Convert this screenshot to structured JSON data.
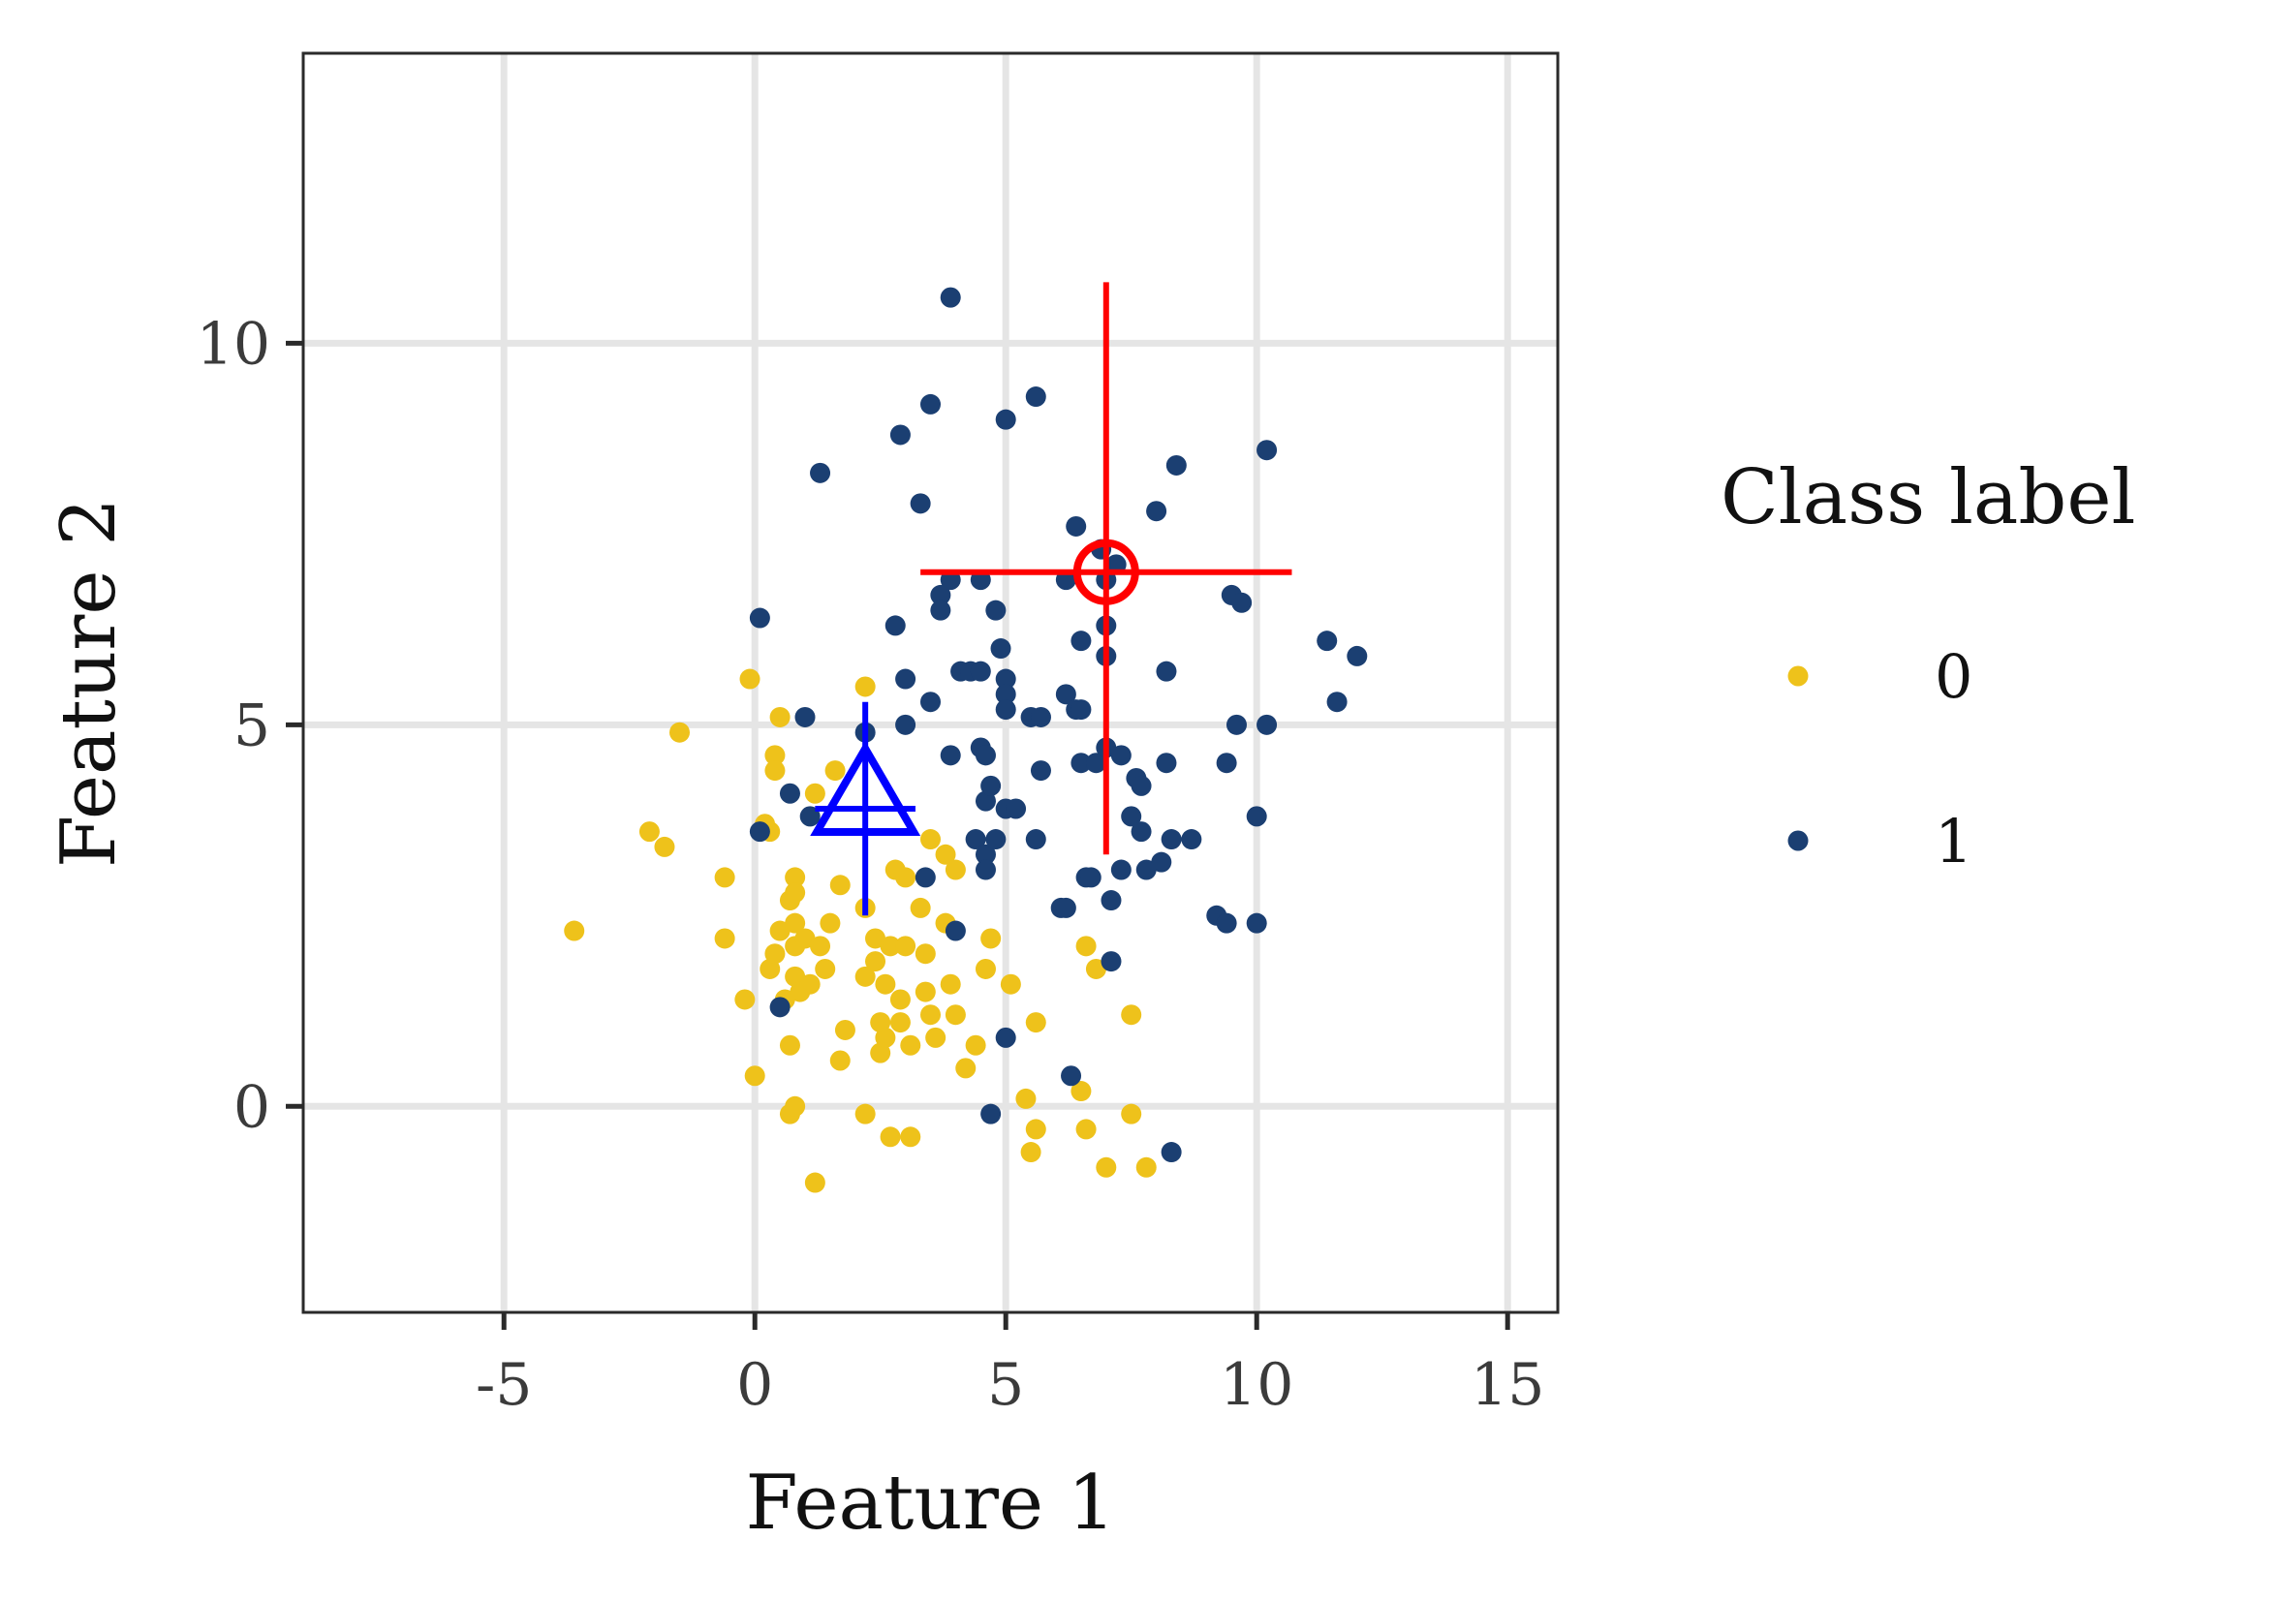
{
  "chart_data": {
    "type": "scatter",
    "xlabel": "Feature 1",
    "ylabel": "Feature 2",
    "xlim": [
      -9,
      16
    ],
    "ylim": [
      -2.7,
      13.8
    ],
    "xticks": [
      -5,
      0,
      5,
      10,
      15
    ],
    "yticks": [
      0,
      5,
      10
    ],
    "xtick_labels": [
      "-5",
      "0",
      "5",
      "10",
      "15"
    ],
    "ytick_labels": [
      "0",
      "5",
      "10"
    ],
    "grid": true,
    "legend": {
      "title": "Class label",
      "position": "right",
      "entries": [
        "0",
        "1"
      ]
    },
    "series": [
      {
        "name": "0",
        "color": "#eec21b",
        "points": [
          [
            -3.6,
            2.3
          ],
          [
            -2.1,
            3.6
          ],
          [
            -1.8,
            3.4
          ],
          [
            -1.5,
            4.9
          ],
          [
            -0.6,
            3.0
          ],
          [
            -0.6,
            2.2
          ],
          [
            -0.2,
            1.4
          ],
          [
            -0.1,
            5.6
          ],
          [
            0.0,
            0.4
          ],
          [
            0.2,
            3.7
          ],
          [
            0.3,
            3.6
          ],
          [
            0.3,
            1.8
          ],
          [
            0.4,
            4.6
          ],
          [
            0.4,
            4.4
          ],
          [
            0.4,
            2.0
          ],
          [
            0.5,
            5.1
          ],
          [
            0.5,
            2.3
          ],
          [
            0.6,
            1.4
          ],
          [
            0.7,
            2.7
          ],
          [
            0.7,
            0.8
          ],
          [
            0.7,
            -0.1
          ],
          [
            0.8,
            3.0
          ],
          [
            0.8,
            2.8
          ],
          [
            0.8,
            2.4
          ],
          [
            0.8,
            2.1
          ],
          [
            0.8,
            1.7
          ],
          [
            0.8,
            0.0
          ],
          [
            0.9,
            1.5
          ],
          [
            1.0,
            2.2
          ],
          [
            1.1,
            1.6
          ],
          [
            1.2,
            4.1
          ],
          [
            1.2,
            -1.0
          ],
          [
            1.3,
            2.1
          ],
          [
            1.4,
            1.8
          ],
          [
            1.5,
            2.4
          ],
          [
            1.6,
            4.4
          ],
          [
            1.7,
            2.9
          ],
          [
            1.7,
            0.6
          ],
          [
            1.8,
            1.0
          ],
          [
            2.2,
            5.5
          ],
          [
            2.2,
            2.6
          ],
          [
            2.2,
            1.7
          ],
          [
            2.2,
            -0.1
          ],
          [
            2.4,
            2.2
          ],
          [
            2.4,
            1.9
          ],
          [
            2.5,
            1.1
          ],
          [
            2.5,
            0.7
          ],
          [
            2.6,
            0.9
          ],
          [
            2.6,
            1.6
          ],
          [
            2.7,
            2.1
          ],
          [
            2.7,
            -0.4
          ],
          [
            2.8,
            3.1
          ],
          [
            2.9,
            1.4
          ],
          [
            2.9,
            1.1
          ],
          [
            3.0,
            2.1
          ],
          [
            3.0,
            3.0
          ],
          [
            3.1,
            0.8
          ],
          [
            3.1,
            -0.4
          ],
          [
            3.3,
            2.6
          ],
          [
            3.4,
            1.5
          ],
          [
            3.4,
            2.0
          ],
          [
            3.5,
            3.5
          ],
          [
            3.5,
            1.2
          ],
          [
            3.6,
            0.9
          ],
          [
            3.8,
            3.3
          ],
          [
            3.8,
            2.4
          ],
          [
            3.9,
            1.6
          ],
          [
            4.0,
            3.1
          ],
          [
            4.0,
            1.2
          ],
          [
            4.2,
            0.5
          ],
          [
            4.4,
            0.8
          ],
          [
            4.6,
            1.8
          ],
          [
            4.7,
            2.2
          ],
          [
            5.1,
            1.6
          ],
          [
            5.4,
            0.1
          ],
          [
            5.5,
            -0.6
          ],
          [
            5.6,
            1.1
          ],
          [
            5.6,
            -0.3
          ],
          [
            6.5,
            0.2
          ],
          [
            6.6,
            2.1
          ],
          [
            6.6,
            -0.3
          ],
          [
            6.8,
            1.8
          ],
          [
            7.0,
            -0.8
          ],
          [
            7.5,
            1.2
          ],
          [
            7.5,
            -0.1
          ],
          [
            7.8,
            -0.8
          ]
        ]
      },
      {
        "name": "1",
        "color": "#1b3f72",
        "points": [
          [
            0.1,
            6.4
          ],
          [
            0.1,
            3.6
          ],
          [
            0.5,
            1.3
          ],
          [
            0.7,
            4.1
          ],
          [
            1.0,
            5.1
          ],
          [
            1.1,
            3.8
          ],
          [
            1.3,
            8.3
          ],
          [
            2.2,
            4.9
          ],
          [
            2.8,
            6.3
          ],
          [
            2.9,
            8.8
          ],
          [
            3.0,
            5.6
          ],
          [
            3.0,
            5.0
          ],
          [
            3.3,
            7.9
          ],
          [
            3.4,
            3.0
          ],
          [
            3.5,
            9.2
          ],
          [
            3.5,
            5.3
          ],
          [
            3.7,
            6.7
          ],
          [
            3.7,
            6.5
          ],
          [
            3.9,
            10.6
          ],
          [
            3.9,
            6.9
          ],
          [
            3.9,
            4.6
          ],
          [
            4.0,
            2.3
          ],
          [
            4.1,
            5.7
          ],
          [
            4.3,
            5.7
          ],
          [
            4.4,
            3.5
          ],
          [
            4.5,
            6.9
          ],
          [
            4.5,
            5.7
          ],
          [
            4.5,
            4.7
          ],
          [
            4.6,
            4.6
          ],
          [
            4.6,
            4.0
          ],
          [
            4.6,
            3.3
          ],
          [
            4.6,
            3.1
          ],
          [
            4.7,
            4.2
          ],
          [
            4.7,
            -0.1
          ],
          [
            4.8,
            3.5
          ],
          [
            4.8,
            6.5
          ],
          [
            4.9,
            6.0
          ],
          [
            5.0,
            9.0
          ],
          [
            5.0,
            5.6
          ],
          [
            5.0,
            5.4
          ],
          [
            5.0,
            5.2
          ],
          [
            5.0,
            3.9
          ],
          [
            5.0,
            0.9
          ],
          [
            5.2,
            3.9
          ],
          [
            5.5,
            5.1
          ],
          [
            5.6,
            9.3
          ],
          [
            5.6,
            3.5
          ],
          [
            5.7,
            5.1
          ],
          [
            5.7,
            4.4
          ],
          [
            6.1,
            2.6
          ],
          [
            6.2,
            5.4
          ],
          [
            6.2,
            2.6
          ],
          [
            6.2,
            6.9
          ],
          [
            6.3,
            0.4
          ],
          [
            6.4,
            7.6
          ],
          [
            6.4,
            5.2
          ],
          [
            6.5,
            6.1
          ],
          [
            6.5,
            4.5
          ],
          [
            6.5,
            5.2
          ],
          [
            6.6,
            3.0
          ],
          [
            6.7,
            3.0
          ],
          [
            6.8,
            4.5
          ],
          [
            6.9,
            7.3
          ],
          [
            7.0,
            6.3
          ],
          [
            7.0,
            6.9
          ],
          [
            7.0,
            5.9
          ],
          [
            7.0,
            4.7
          ],
          [
            7.1,
            2.7
          ],
          [
            7.1,
            1.9
          ],
          [
            7.2,
            7.1
          ],
          [
            7.3,
            4.6
          ],
          [
            7.3,
            3.1
          ],
          [
            7.5,
            3.8
          ],
          [
            7.6,
            4.3
          ],
          [
            7.7,
            3.6
          ],
          [
            7.7,
            4.2
          ],
          [
            7.8,
            3.1
          ],
          [
            8.0,
            7.8
          ],
          [
            8.1,
            3.2
          ],
          [
            8.2,
            5.7
          ],
          [
            8.2,
            4.5
          ],
          [
            8.3,
            3.5
          ],
          [
            8.3,
            -0.6
          ],
          [
            8.4,
            8.4
          ],
          [
            8.7,
            3.5
          ],
          [
            9.2,
            2.5
          ],
          [
            9.4,
            4.5
          ],
          [
            9.4,
            2.4
          ],
          [
            9.5,
            6.7
          ],
          [
            9.6,
            5.0
          ],
          [
            9.7,
            6.6
          ],
          [
            10.0,
            3.8
          ],
          [
            10.0,
            2.4
          ],
          [
            10.2,
            8.6
          ],
          [
            10.2,
            5.0
          ],
          [
            11.4,
            6.1
          ],
          [
            11.6,
            5.3
          ],
          [
            12.0,
            5.9
          ]
        ]
      }
    ],
    "annotations": [
      {
        "marker": "triangle",
        "color": "#0000ff",
        "x": 2.2,
        "y": 3.9,
        "x_err": [
          1.2,
          3.2
        ],
        "y_err": [
          2.5,
          5.3
        ]
      },
      {
        "marker": "circle",
        "color": "#ff0000",
        "x": 7.0,
        "y": 7.0,
        "x_err": [
          3.3,
          10.7
        ],
        "y_err": [
          3.3,
          10.8
        ]
      }
    ]
  }
}
